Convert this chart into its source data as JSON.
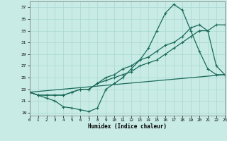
{
  "xlabel": "Humidex (Indice chaleur)",
  "bg_color": "#c8ebe5",
  "line_color": "#1a6b5a",
  "grid_color": "#a8d8d0",
  "xlim": [
    0,
    23
  ],
  "ylim": [
    18.5,
    38
  ],
  "xticks": [
    0,
    1,
    2,
    3,
    4,
    5,
    6,
    7,
    8,
    9,
    10,
    11,
    12,
    13,
    14,
    15,
    16,
    17,
    18,
    19,
    20,
    21,
    22,
    23
  ],
  "yticks": [
    19,
    21,
    23,
    25,
    27,
    29,
    31,
    33,
    35,
    37
  ],
  "line1_x": [
    0,
    1,
    2,
    3,
    4,
    5,
    6,
    7,
    8,
    9,
    10,
    11,
    12,
    13,
    14,
    15,
    16,
    17,
    18,
    19,
    20,
    21,
    22,
    23
  ],
  "line1_y": [
    22.5,
    22,
    21.5,
    21,
    20,
    19.8,
    19.5,
    19.2,
    19.8,
    23,
    24,
    25,
    26.5,
    28,
    30,
    33,
    36,
    37.5,
    36.5,
    33,
    29.5,
    26.5,
    25.5,
    25.5
  ],
  "line2_x": [
    0,
    1,
    2,
    3,
    4,
    5,
    6,
    7,
    8,
    9,
    10,
    11,
    12,
    13,
    14,
    15,
    16,
    17,
    18,
    19,
    20,
    21,
    22,
    23
  ],
  "line2_y": [
    22.5,
    22,
    22,
    22,
    22,
    22.5,
    23,
    23,
    24,
    25,
    25.5,
    26.5,
    27,
    28,
    28.5,
    29.5,
    30.5,
    31,
    32,
    33.5,
    34,
    33,
    27,
    25.5
  ],
  "line3_x": [
    0,
    1,
    2,
    3,
    4,
    5,
    6,
    7,
    8,
    9,
    10,
    11,
    12,
    13,
    14,
    15,
    16,
    17,
    18,
    19,
    20,
    21,
    22,
    23
  ],
  "line3_y": [
    22.5,
    22,
    22,
    22,
    22,
    22.5,
    23,
    23,
    24,
    24.5,
    25,
    25.5,
    26,
    27,
    27.5,
    28,
    29,
    30,
    31,
    32,
    33,
    33,
    34,
    34
  ],
  "line4_x": [
    0,
    23
  ],
  "line4_y": [
    22.5,
    25.5
  ]
}
